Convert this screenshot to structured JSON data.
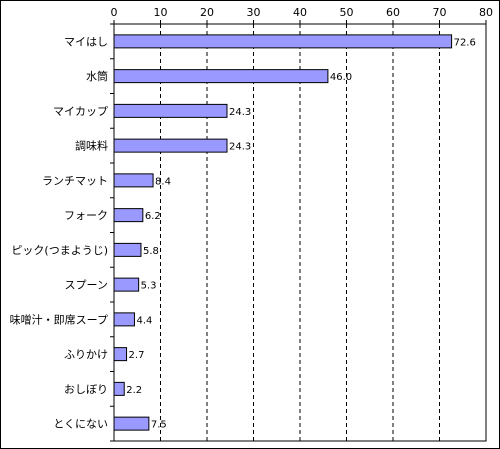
{
  "chart_data": {
    "type": "bar",
    "orientation": "horizontal",
    "categories": [
      "マイはし",
      "水筒",
      "マイカップ",
      "調味料",
      "ランチマット",
      "フォーク",
      "ピック(つまようじ)",
      "スプーン",
      "味噌汁・即席スープ",
      "ふりかけ",
      "おしぼり",
      "とくにない"
    ],
    "values": [
      72.6,
      46.0,
      24.3,
      24.3,
      8.4,
      6.2,
      5.8,
      5.3,
      4.4,
      2.7,
      2.2,
      7.5
    ],
    "value_labels": [
      "72.6",
      "46.0",
      "24.3",
      "24.3",
      "8.4",
      "6.2",
      "5.8",
      "5.3",
      "4.4",
      "2.7",
      "2.2",
      "7.5"
    ],
    "xlim": [
      0,
      80
    ],
    "x_ticks": [
      "0",
      "10",
      "20",
      "30",
      "40",
      "50",
      "60",
      "70",
      "80"
    ],
    "x_axis_position": "top",
    "grid": "vertical dashed",
    "legend": "none",
    "title": "",
    "xlabel": "",
    "ylabel": "",
    "colors": {
      "bar_fill": "#9999ff",
      "bar_stroke": "#000000",
      "grid": "#000000",
      "axis": "#000000",
      "background": "#ffffff"
    }
  }
}
